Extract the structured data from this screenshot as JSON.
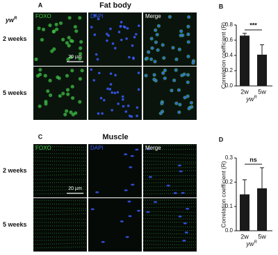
{
  "panels": [
    {
      "label": "A",
      "title": "Fat body",
      "genotype": "yw",
      "genotype_sup": "R",
      "columns": [
        "FOXO",
        "DAPI",
        "Merge"
      ],
      "rows": [
        "2 weeks",
        "5 weeks"
      ],
      "scale_bar": "20 µm"
    },
    {
      "label": "C",
      "title": "Muscle",
      "columns": [
        "FOXO",
        "DAPI",
        "Merge"
      ],
      "rows": [
        "2 weeks",
        "5 weeks"
      ],
      "scale_bar": "20 µm"
    }
  ],
  "chart_data": [
    {
      "type": "bar",
      "panel_label": "B",
      "ylabel": "Correlation coefficient (R)",
      "categories": [
        "2w",
        "5w"
      ],
      "values": [
        0.66,
        0.41
      ],
      "errors": [
        0.03,
        0.13
      ],
      "color": "#1a1a1a",
      "ylim": [
        0,
        0.8
      ],
      "yticks": [
        {
          "value": 0,
          "label": "0.0"
        },
        0.2,
        0.4,
        0.6,
        0.8
      ],
      "xlabel": "yw",
      "xlabel_sup": "R",
      "annotation": "***"
    },
    {
      "type": "bar",
      "panel_label": "D",
      "ylabel": "Correlation coefficient (R)",
      "categories": [
        "2w",
        "5w"
      ],
      "values": [
        0.15,
        0.175
      ],
      "errors": [
        0.06,
        0.085
      ],
      "color": "#1a1a1a",
      "ylim": [
        0,
        0.3
      ],
      "yticks": [
        {
          "value": 0,
          "label": "0.0"
        },
        0.1,
        0.2,
        0.3
      ],
      "xlabel": "yw",
      "xlabel_sup": "R",
      "annotation": "ns"
    }
  ]
}
